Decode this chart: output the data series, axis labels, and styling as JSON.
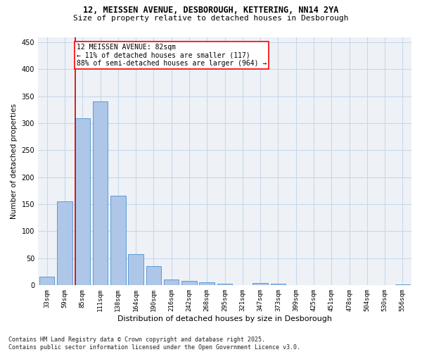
{
  "title_line1": "12, MEISSEN AVENUE, DESBOROUGH, KETTERING, NN14 2YA",
  "title_line2": "Size of property relative to detached houses in Desborough",
  "xlabel": "Distribution of detached houses by size in Desborough",
  "ylabel": "Number of detached properties",
  "bar_color": "#aec6e8",
  "bar_edge_color": "#5b9bd5",
  "grid_color": "#c8d8e8",
  "background_color": "#eef2f7",
  "categories": [
    "33sqm",
    "59sqm",
    "85sqm",
    "111sqm",
    "138sqm",
    "164sqm",
    "190sqm",
    "216sqm",
    "242sqm",
    "268sqm",
    "295sqm",
    "321sqm",
    "347sqm",
    "373sqm",
    "399sqm",
    "425sqm",
    "451sqm",
    "478sqm",
    "504sqm",
    "530sqm",
    "556sqm"
  ],
  "values": [
    16,
    155,
    309,
    341,
    165,
    57,
    35,
    10,
    8,
    5,
    3,
    0,
    4,
    3,
    0,
    0,
    0,
    0,
    0,
    0,
    1
  ],
  "vline_x": 1.6,
  "vline_color": "#cc0000",
  "annotation_text": "12 MEISSEN AVENUE: 82sqm\n← 11% of detached houses are smaller (117)\n88% of semi-detached houses are larger (964) →",
  "footer_text": "Contains HM Land Registry data © Crown copyright and database right 2025.\nContains public sector information licensed under the Open Government Licence v3.0.",
  "ylim": [
    0,
    460
  ],
  "yticks": [
    0,
    50,
    100,
    150,
    200,
    250,
    300,
    350,
    400,
    450
  ],
  "title_fontsize": 8.5,
  "subtitle_fontsize": 8,
  "ylabel_fontsize": 7.5,
  "xlabel_fontsize": 8,
  "tick_fontsize": 6.5,
  "footer_fontsize": 6,
  "annotation_fontsize": 7
}
